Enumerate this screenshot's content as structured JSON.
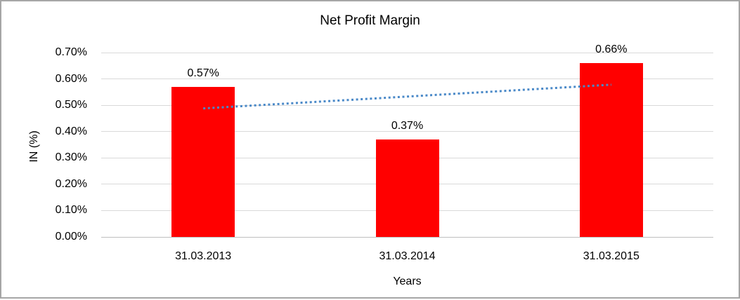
{
  "chart_data": {
    "type": "bar",
    "title": "Net Profit Margin",
    "xlabel": "Years",
    "ylabel": "IN (%)",
    "categories": [
      "31.03.2013",
      "31.03.2014",
      "31.03.2015"
    ],
    "values": [
      0.57,
      0.37,
      0.66
    ],
    "data_labels": [
      "0.57%",
      "0.37%",
      "0.66%"
    ],
    "ylim": [
      0.0,
      0.7
    ],
    "ytick_step": 0.1,
    "yticks": [
      {
        "value": 0.7,
        "label": "0.70%"
      },
      {
        "value": 0.6,
        "label": "0.60%"
      },
      {
        "value": 0.5,
        "label": "0.50%"
      },
      {
        "value": 0.4,
        "label": "0.40%"
      },
      {
        "value": 0.3,
        "label": "0.30%"
      },
      {
        "value": 0.2,
        "label": "0.20%"
      },
      {
        "value": 0.1,
        "label": "0.10%"
      },
      {
        "value": 0.0,
        "label": "0.00%"
      }
    ],
    "grid": true,
    "legend": "none",
    "colors": {
      "bar": "#ff0000",
      "gridline": "#d9d9d9",
      "axisline": "#bfbfbf",
      "trendline": "#4a89c8",
      "border": "#a6a6a6",
      "text": "#000000"
    },
    "trendline": {
      "type": "linear",
      "style": "dotted",
      "color": "#4a89c8",
      "start_value": 0.488,
      "end_value": 0.578
    }
  }
}
